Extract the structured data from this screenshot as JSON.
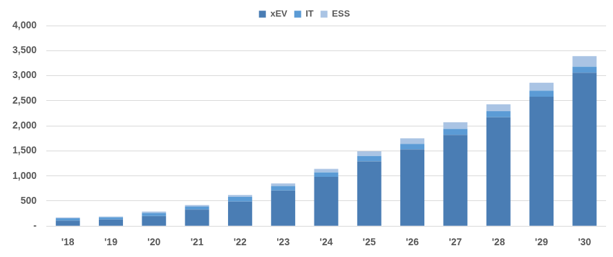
{
  "chart_data": {
    "type": "bar",
    "categories": [
      "'18",
      "'19",
      "'20",
      "'21",
      "'22",
      "'23",
      "'24",
      "'25",
      "'26",
      "'27",
      "'28",
      "'29",
      "'30"
    ],
    "series": [
      {
        "name": "xEV",
        "color": "#4a7db4",
        "values": [
          110,
          130,
          200,
          330,
          490,
          710,
          980,
          1290,
          1530,
          1820,
          2170,
          2580,
          3060
        ]
      },
      {
        "name": "IT",
        "color": "#5b9bd5",
        "values": [
          45,
          45,
          60,
          60,
          90,
          90,
          90,
          110,
          110,
          120,
          120,
          120,
          120
        ]
      },
      {
        "name": "ESS",
        "color": "#aac4e4",
        "values": [
          15,
          15,
          30,
          30,
          40,
          50,
          70,
          90,
          110,
          130,
          140,
          160,
          210
        ]
      }
    ],
    "stacked": true,
    "ylim": [
      0,
      4000
    ],
    "yticks": [
      {
        "value": 0,
        "label": "-"
      },
      500,
      {
        "value": 1000,
        "label": "1,000"
      },
      {
        "value": 1500,
        "label": "1,500"
      },
      {
        "value": 2000,
        "label": "2,000"
      },
      {
        "value": 2500,
        "label": "2,500"
      },
      {
        "value": 3000,
        "label": "3,000"
      },
      {
        "value": 3500,
        "label": "3,500"
      },
      {
        "value": 4000,
        "label": "4,000"
      }
    ],
    "grid": true,
    "legend": "top"
  }
}
